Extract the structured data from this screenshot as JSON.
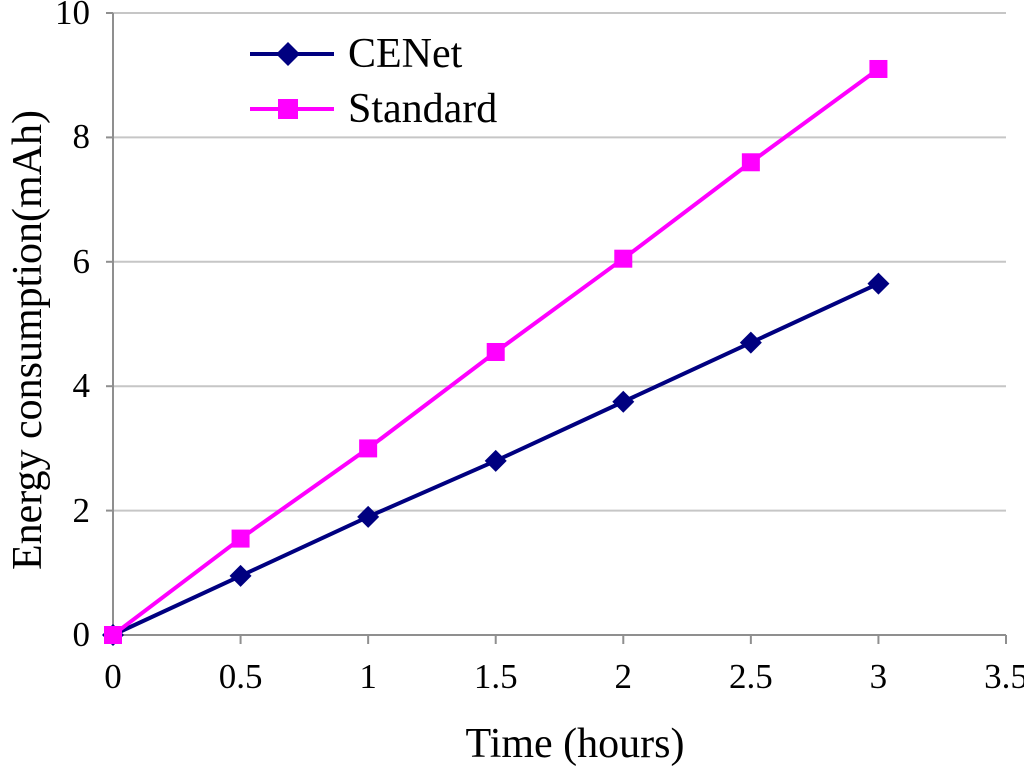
{
  "chart_data": {
    "type": "line",
    "title": "",
    "xlabel": "Time (hours)",
    "ylabel": "Energy consumption(mAh)",
    "x": [
      0,
      0.5,
      1,
      1.5,
      2,
      2.5,
      3
    ],
    "series": [
      {
        "name": "CENet",
        "color": "#000080",
        "marker": "diamond",
        "values": [
          0,
          0.95,
          1.9,
          2.8,
          3.75,
          4.7,
          5.65
        ]
      },
      {
        "name": "Standard",
        "color": "#ff00ff",
        "marker": "square",
        "values": [
          0,
          1.55,
          3.0,
          4.55,
          6.05,
          7.6,
          9.1
        ]
      }
    ],
    "xlim": [
      0,
      3.5
    ],
    "ylim": [
      0,
      10
    ],
    "xticks": [
      "0",
      "0.5",
      "1",
      "1.5",
      "2",
      "2.5",
      "3",
      "3.5"
    ],
    "yticks": [
      "0",
      "2",
      "4",
      "6",
      "8",
      "10"
    ],
    "grid": "horizontal-only",
    "legend_position": "top-left-inside",
    "colors": {
      "axis": "#8f8f8f",
      "gridline": "#c6c6c6",
      "text": "#000000",
      "background": "#ffffff"
    }
  }
}
